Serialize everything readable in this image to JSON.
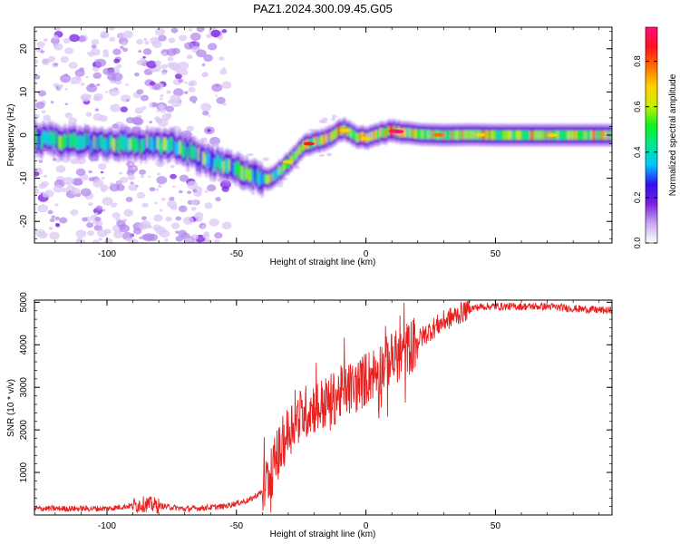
{
  "title": "PAZ1.2024.300.09.45.G05",
  "chart_data": [
    {
      "type": "heatmap",
      "xlabel": "Height of straight line (km)",
      "ylabel": "Frequency (Hz)",
      "xlim": [
        -128,
        95
      ],
      "ylim": [
        -25,
        25
      ],
      "x_ticks": [
        -100,
        -50,
        0,
        50
      ],
      "x_tick_labels": [
        "-100",
        "-50",
        "0",
        "50"
      ],
      "y_ticks": [
        -20,
        -10,
        0,
        10,
        20
      ],
      "y_tick_labels": [
        "-20",
        "-10",
        "0",
        "10",
        "20"
      ],
      "ridge": {
        "x": [
          -128,
          -115,
          -105,
          -95,
          -85,
          -75,
          -70,
          -65,
          -60,
          -55,
          -50,
          -45,
          -40,
          -37,
          -33,
          -28,
          -24,
          -20,
          -16,
          -12,
          -9,
          -6,
          -3,
          0,
          3,
          6,
          10,
          14,
          20,
          30,
          40,
          50,
          60,
          70,
          80,
          95
        ],
        "y": [
          -1,
          -1.5,
          -1.8,
          -2,
          -2.2,
          -2.5,
          -3.5,
          -5,
          -6,
          -7,
          -8,
          -9,
          -10.3,
          -10,
          -8,
          -5,
          -2.5,
          -1.5,
          -1,
          0.3,
          1.5,
          0.2,
          -0.5,
          -0.8,
          0,
          0.5,
          1,
          0.7,
          0.2,
          0,
          0.1,
          0,
          0,
          0,
          0,
          0
        ]
      },
      "colorbar": {
        "label": "Normalized spectral amplitude",
        "range": [
          0,
          0.95
        ],
        "ticks": [
          0,
          0.2,
          0.4,
          0.6,
          0.8
        ],
        "tick_labels": [
          "0.0",
          "0.2",
          "0.4",
          "0.6",
          "0.8"
        ],
        "colors": [
          "#ffffff",
          "#c8a8f0",
          "#7a20e0",
          "#3010f0",
          "#00c8ff",
          "#00e890",
          "#10f020",
          "#c8f000",
          "#ffd000",
          "#ff7000",
          "#ff1020",
          "#ff1078"
        ]
      }
    },
    {
      "type": "line",
      "xlabel": "Height of straight line (km)",
      "ylabel": "SNR (10 * v/v)",
      "xlim": [
        -128,
        95
      ],
      "ylim": [
        0,
        5050
      ],
      "x_ticks": [
        -100,
        -50,
        0,
        50
      ],
      "x_tick_labels": [
        "-100",
        "-50",
        "0",
        "50"
      ],
      "y_ticks": [
        1000,
        2000,
        3000,
        4000,
        5000
      ],
      "y_tick_labels": [
        "1000",
        "2000",
        "3000",
        "4000",
        "5000"
      ],
      "color": "#e82020",
      "trend": {
        "x": [
          -128,
          -100,
          -85,
          -70,
          -55,
          -45,
          -40,
          -36,
          -32,
          -28,
          -24,
          -20,
          -16,
          -12,
          -8,
          -4,
          0,
          5,
          10,
          15,
          20,
          25,
          30,
          35,
          40,
          45,
          50,
          60,
          70,
          80,
          95
        ],
        "y": [
          150,
          150,
          260,
          140,
          200,
          350,
          550,
          1100,
          1700,
          2200,
          2400,
          2550,
          2600,
          2750,
          2950,
          3000,
          3200,
          3450,
          3650,
          3850,
          4100,
          4350,
          4550,
          4700,
          4850,
          4900,
          4900,
          4900,
          4900,
          4850,
          4800
        ]
      }
    }
  ]
}
